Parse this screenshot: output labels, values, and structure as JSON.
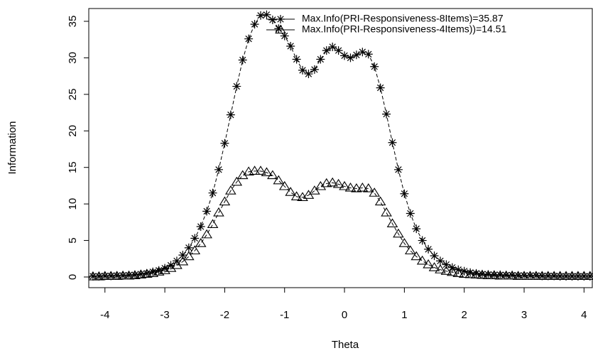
{
  "chart_data": {
    "type": "line",
    "x_label": "Theta",
    "y_label": "Information",
    "x": [
      -4.2,
      -4.1,
      -4,
      -3.9,
      -3.8,
      -3.7,
      -3.6,
      -3.5,
      -3.4,
      -3.3,
      -3.2,
      -3.1,
      -3,
      -2.9,
      -2.8,
      -2.7,
      -2.6,
      -2.5,
      -2.4,
      -2.3,
      -2.2,
      -2.1,
      -2,
      -1.9,
      -1.8,
      -1.7,
      -1.6,
      -1.5,
      -1.4,
      -1.3,
      -1.2,
      -1.1,
      -1,
      -0.9,
      -0.8,
      -0.7,
      -0.6,
      -0.5,
      -0.4,
      -0.3,
      -0.2,
      -0.1,
      0,
      0.1,
      0.2,
      0.3,
      0.4,
      0.5,
      0.6,
      0.7,
      0.8,
      0.9,
      1,
      1.1,
      1.2,
      1.3,
      1.4,
      1.5,
      1.6,
      1.7,
      1.8,
      1.9,
      2,
      2.1,
      2.2,
      2.3,
      2.4,
      2.5,
      2.6,
      2.7,
      2.8,
      2.9,
      3,
      3.1,
      3.2,
      3.3,
      3.4,
      3.5,
      3.6,
      3.7,
      3.8,
      3.9,
      4,
      4.1
    ],
    "series": [
      {
        "name": "Max.Info(PRI-Responsiveness-8Items)=35.87",
        "color": "#000000",
        "marker": "asterisk",
        "values": [
          0.1,
          0.1,
          0.15,
          0.15,
          0.2,
          0.2,
          0.25,
          0.3,
          0.4,
          0.5,
          0.7,
          0.9,
          1.2,
          1.6,
          2.2,
          3.0,
          4.0,
          5.3,
          6.9,
          9.0,
          11.5,
          14.7,
          18.3,
          22.2,
          26.1,
          29.7,
          32.6,
          34.6,
          35.8,
          35.9,
          35.2,
          34.0,
          33.0,
          31.6,
          29.8,
          28.3,
          27.8,
          28.4,
          29.8,
          31.0,
          31.5,
          31.0,
          30.3,
          30.0,
          30.4,
          30.8,
          30.5,
          28.8,
          25.9,
          22.3,
          18.4,
          14.7,
          11.4,
          8.7,
          6.6,
          5.0,
          3.8,
          2.9,
          2.2,
          1.7,
          1.3,
          1.0,
          0.8,
          0.6,
          0.5,
          0.4,
          0.35,
          0.3,
          0.3,
          0.25,
          0.25,
          0.2,
          0.2,
          0.2,
          0.2,
          0.15,
          0.15,
          0.15,
          0.1,
          0.1,
          0.1,
          0.1,
          0.1,
          0.1
        ]
      },
      {
        "name": "Max.Info(PRI-Responsiveness-4Items))=14.51",
        "color": "#000000",
        "marker": "triangle",
        "values": [
          0.05,
          0.05,
          0.1,
          0.1,
          0.1,
          0.15,
          0.15,
          0.2,
          0.3,
          0.4,
          0.5,
          0.7,
          0.9,
          1.2,
          1.6,
          2.1,
          2.8,
          3.6,
          4.6,
          5.8,
          7.2,
          8.8,
          10.3,
          11.8,
          13.0,
          13.9,
          14.4,
          14.5,
          14.5,
          14.3,
          13.9,
          13.2,
          12.4,
          11.6,
          11.0,
          10.9,
          11.2,
          11.8,
          12.4,
          12.8,
          12.9,
          12.7,
          12.4,
          12.2,
          12.1,
          12.2,
          12.1,
          11.5,
          10.3,
          8.8,
          7.3,
          5.9,
          4.6,
          3.6,
          2.8,
          2.2,
          1.7,
          1.3,
          1.0,
          0.8,
          0.65,
          0.5,
          0.4,
          0.35,
          0.3,
          0.25,
          0.2,
          0.2,
          0.15,
          0.15,
          0.15,
          0.1,
          0.1,
          0.1,
          0.1,
          0.1,
          0.1,
          0.1,
          0.1,
          0.1,
          0.1,
          0.1,
          0.1,
          0.1
        ]
      }
    ],
    "xlim": [
      -4.27,
      4.15
    ],
    "ylim": [
      -1.46,
      36.75
    ],
    "xticks": [
      -4,
      -3,
      -2,
      -1,
      0,
      1,
      2,
      3,
      4
    ],
    "yticks": [
      0,
      5,
      10,
      15,
      20,
      25,
      30,
      35
    ],
    "legend": "top-right"
  }
}
